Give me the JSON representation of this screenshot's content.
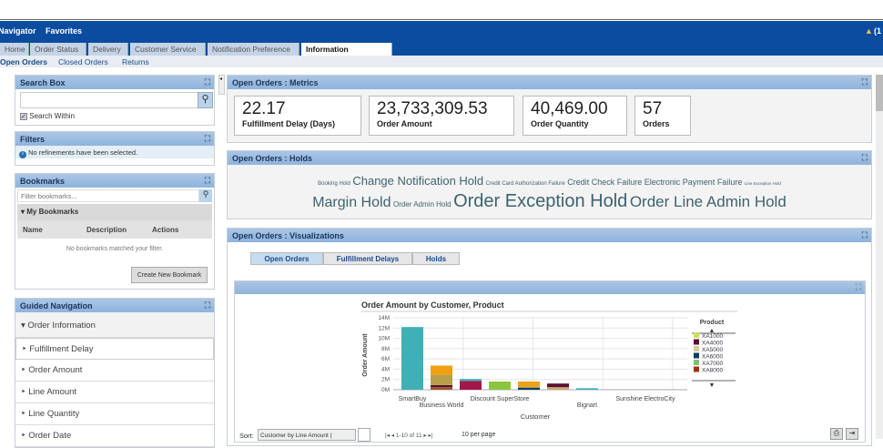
{
  "nav": {
    "navigator": "Navigator",
    "favorites": "Favorites",
    "notifications": "(1"
  },
  "tabs": [
    "Home",
    "Order Status",
    "Delivery",
    "Customer Service",
    "Notification Preference",
    "Information Discovery"
  ],
  "subnav": [
    "Open Orders",
    "Closed Orders",
    "Returns"
  ],
  "search": {
    "title": "Search Box",
    "value": "",
    "search_within": "Search Within",
    "checked": true
  },
  "filters": {
    "title": "Filters",
    "message": "No refinements have been selected."
  },
  "bookmarks": {
    "title": "Bookmarks",
    "placeholder": "Filter bookmarks...",
    "group": "My Bookmarks",
    "columns": [
      "Name",
      "Description",
      "Actions"
    ],
    "empty": "No bookmarks matched your filter.",
    "create": "Create New Bookmark"
  },
  "guided": {
    "title": "Guided Navigation",
    "group": "Order Information",
    "items": [
      "Fulfillment Delay",
      "Order Amount",
      "Line Amount",
      "Line Quantity",
      "Order Date"
    ]
  },
  "metrics": {
    "title": "Open Orders : Metrics",
    "items": [
      {
        "value": "22.17",
        "label": "Fulfillment Delay (Days)"
      },
      {
        "value": "23,733,309.53",
        "label": "Order Amount"
      },
      {
        "value": "40,469.00",
        "label": "Order Quantity"
      },
      {
        "value": "57",
        "label": "Orders"
      }
    ]
  },
  "holds": {
    "title": "Open Orders : Holds",
    "row1": [
      "Booking Hold",
      "Change Notification Hold",
      "Credit Card Authorization Failure",
      "Credit Check Failure",
      "Electronic Payment Failure",
      "Line Exception Hold"
    ],
    "row2": [
      "Margin Hold",
      "Order Admin Hold",
      "Order Exception Hold",
      "Order Line Admin Hold"
    ]
  },
  "viz": {
    "title": "Open Orders : Visualizations",
    "tabs": [
      "Open Orders",
      "Fulfillment Delays",
      "Holds"
    ],
    "sort_label": "Sort:",
    "sort_value": "Customer by Line Amount (",
    "pager": "|◂ ◂ 1-10 of 11 ▸ ▸|",
    "per_page": "10 per page"
  },
  "chart_data": {
    "type": "bar",
    "stacked": true,
    "title": "Order Amount by Customer, Product",
    "xlabel": "Customer",
    "ylabel": "Order Amount",
    "ylim": [
      0,
      14
    ],
    "yticks": [
      "0M",
      "2M",
      "4M",
      "6M",
      "8M",
      "10M",
      "12M",
      "14M"
    ],
    "categories": [
      "SmartBuy",
      "Business World",
      "",
      "Discount SuperStore",
      "",
      "",
      "Bignart",
      "",
      "Sunshine ElectroCity",
      ""
    ],
    "stacks": [
      [
        {
          "color": "#3fb0b5",
          "value": 12.2
        }
      ],
      [
        {
          "color": "#a0522d",
          "value": 0.5
        },
        {
          "color": "#5a1030",
          "value": 0.4
        },
        {
          "color": "#b8a04a",
          "value": 2.0
        },
        {
          "color": "#f0a012",
          "value": 1.8
        }
      ],
      [
        {
          "color": "#a3174a",
          "value": 1.7
        },
        {
          "color": "#3fb0b5",
          "value": 0.4
        }
      ],
      [
        {
          "color": "#8cc63f",
          "value": 1.6
        }
      ],
      [
        {
          "color": "#0a3d5c",
          "value": 0.4
        },
        {
          "color": "#b8a04a",
          "value": 0.2
        },
        {
          "color": "#f0a012",
          "value": 1.0
        }
      ],
      [
        {
          "color": "#c8a870",
          "value": 0.5
        },
        {
          "color": "#5a1030",
          "value": 0.7
        }
      ],
      [
        {
          "color": "#3fb0b5",
          "value": 0.3
        }
      ],
      [],
      [],
      []
    ],
    "legend": {
      "title": "Product",
      "items": [
        {
          "name": "XA1000",
          "color": "#c8e05a"
        },
        {
          "name": "XA4000",
          "color": "#5a1030"
        },
        {
          "name": "XA5000",
          "color": "#d9c9a0"
        },
        {
          "name": "XA6000",
          "color": "#0a3d5c"
        },
        {
          "name": "XA7000",
          "color": "#7cc46a"
        },
        {
          "name": "XA8000",
          "color": "#a0300a"
        }
      ]
    },
    "grid": true,
    "legend_position": "right"
  }
}
